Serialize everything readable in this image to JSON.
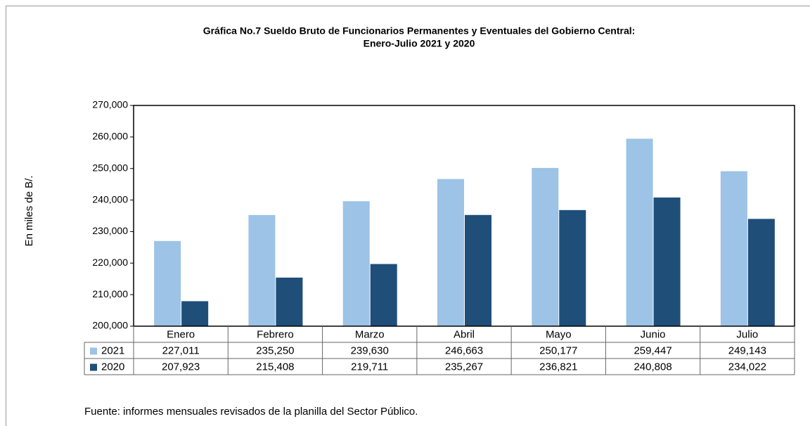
{
  "chart_data": {
    "type": "bar",
    "title": "Gráfica No.7 Sueldo Bruto de Funcionarios Permanentes y Eventuales del Gobierno Central:",
    "subtitle": "Enero-Julio 2021 y 2020",
    "y_label": "En miles de B/.",
    "source": "Fuente: informes mensuales revisados de la planilla del Sector Público.",
    "categories": [
      "Enero",
      "Febrero",
      "Marzo",
      "Abril",
      "Mayo",
      "Junio",
      "Julio"
    ],
    "series": [
      {
        "name": "2021",
        "color": "#9dc3e6",
        "values": [
          227011,
          235250,
          239630,
          246663,
          250177,
          259447,
          249143
        ],
        "value_labels": [
          "227,011",
          "235,250",
          "239,630",
          "246,663",
          "250,177",
          "259,447",
          "249,143"
        ]
      },
      {
        "name": "2020",
        "color": "#1f4e79",
        "values": [
          207923,
          215408,
          219711,
          235267,
          236821,
          240808,
          234022
        ],
        "value_labels": [
          "207,923",
          "215,408",
          "219,711",
          "235,267",
          "236,821",
          "240,808",
          "234,022"
        ]
      }
    ],
    "ylim": [
      200000,
      270000
    ],
    "yticks": [
      {
        "value": 200000,
        "label": "200,000"
      },
      {
        "value": 210000,
        "label": "210,000"
      },
      {
        "value": 220000,
        "label": "220,000"
      },
      {
        "value": 230000,
        "label": "230,000"
      },
      {
        "value": 240000,
        "label": "240,000"
      },
      {
        "value": 250000,
        "label": "250,000"
      },
      {
        "value": 260000,
        "label": "260,000"
      },
      {
        "value": 270000,
        "label": "270,000"
      }
    ],
    "grid": false
  }
}
